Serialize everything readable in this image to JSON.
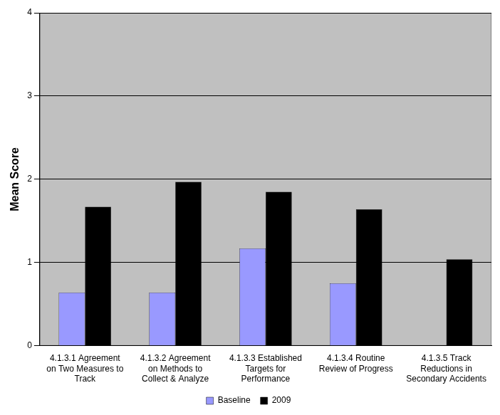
{
  "chart_data": {
    "type": "bar",
    "y_label": "Mean Score",
    "categories": [
      "4.1.3.1 Agreement on Two Measures to Track",
      "4.1.3.2 Agreement on Methods to Collect & Analyze",
      "4.1.3.3 Established Targets for Performance",
      "4.1.3.4 Routine Review of Progress",
      "4.1.3.5 Track Reductions in Secondary Accidents"
    ],
    "series": [
      {
        "name": "Baseline",
        "color": "#9999ff",
        "values": [
          0.64,
          0.64,
          1.17,
          0.75,
          null
        ]
      },
      {
        "name": "2009",
        "color": "#000000",
        "values": [
          1.67,
          1.97,
          1.85,
          1.64,
          1.04
        ]
      }
    ],
    "ylim": [
      0,
      4
    ],
    "yticks": [
      0,
      1,
      2,
      3,
      4
    ],
    "grid": true,
    "legend": "bottom"
  }
}
